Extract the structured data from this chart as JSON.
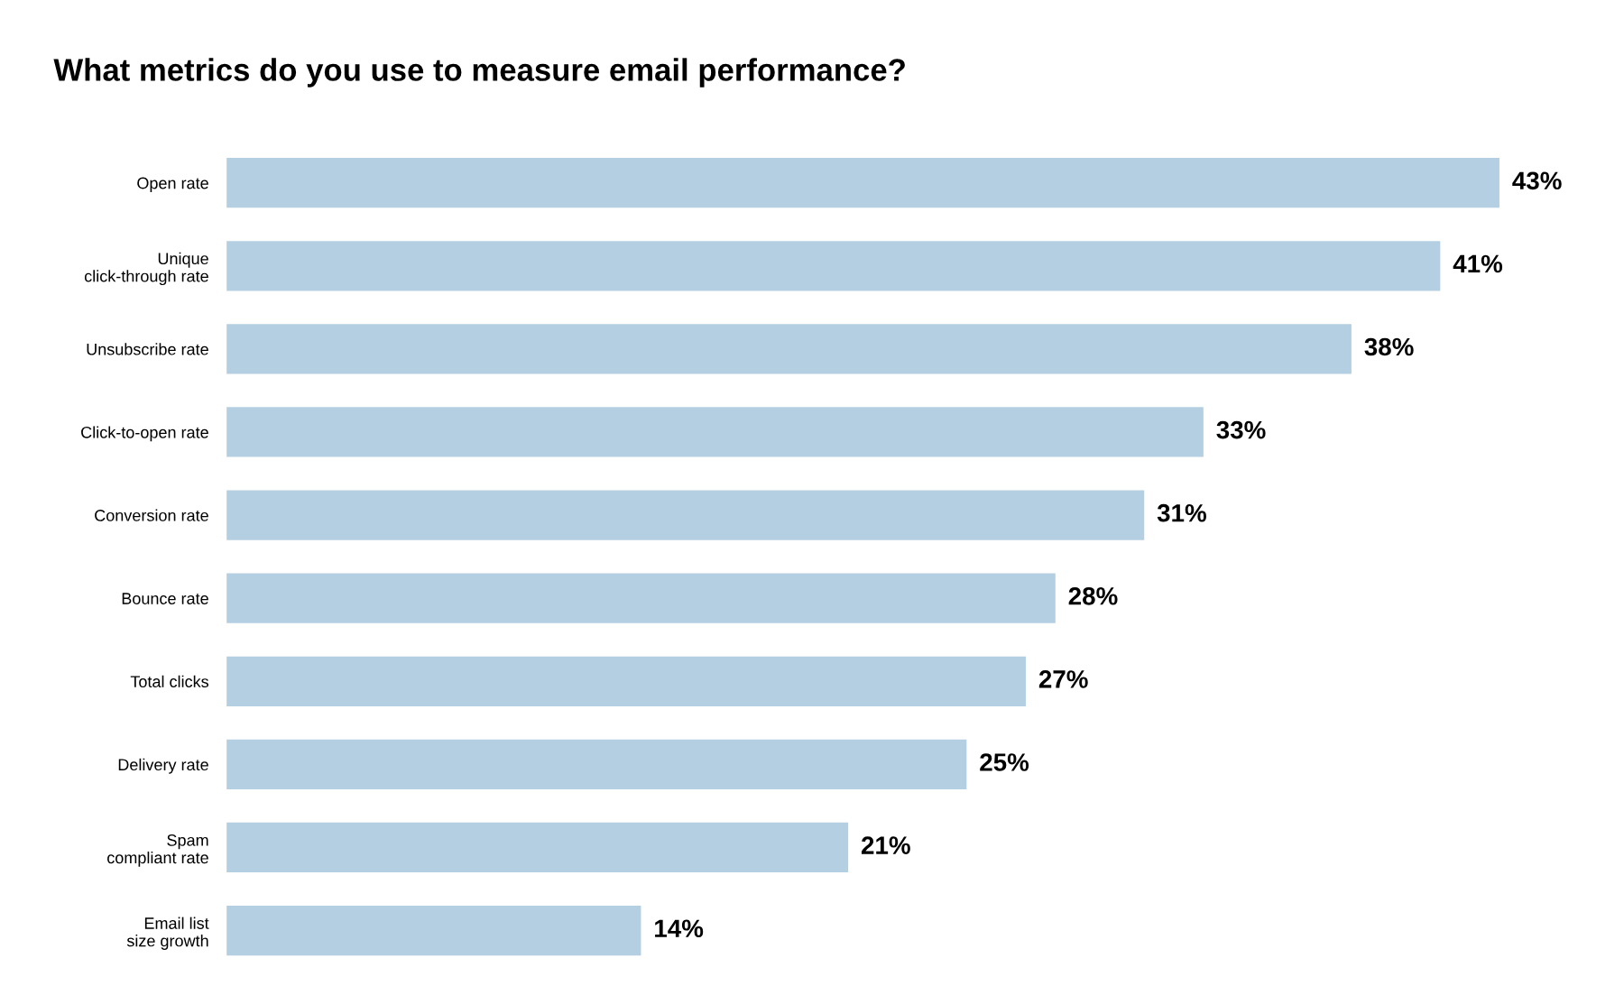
{
  "chart_data": {
    "type": "bar",
    "orientation": "horizontal",
    "title": "What metrics do you use to measure email performance?",
    "categories": [
      "Open rate",
      "Unique\nclick-through rate",
      "Unsubscribe rate",
      "Click-to-open rate",
      "Conversion rate",
      "Bounce rate",
      "Total clicks",
      "Delivery rate",
      "Spam\ncompliant rate",
      "Email list\nsize growth"
    ],
    "values": [
      43,
      41,
      38,
      33,
      31,
      28,
      27,
      25,
      21,
      14
    ],
    "value_labels": [
      "43%",
      "41%",
      "38%",
      "33%",
      "31%",
      "28%",
      "27%",
      "25%",
      "21%",
      "14%"
    ],
    "color": "#b5cfe2",
    "tick_labels": "y",
    "grid": false,
    "legend": false
  }
}
